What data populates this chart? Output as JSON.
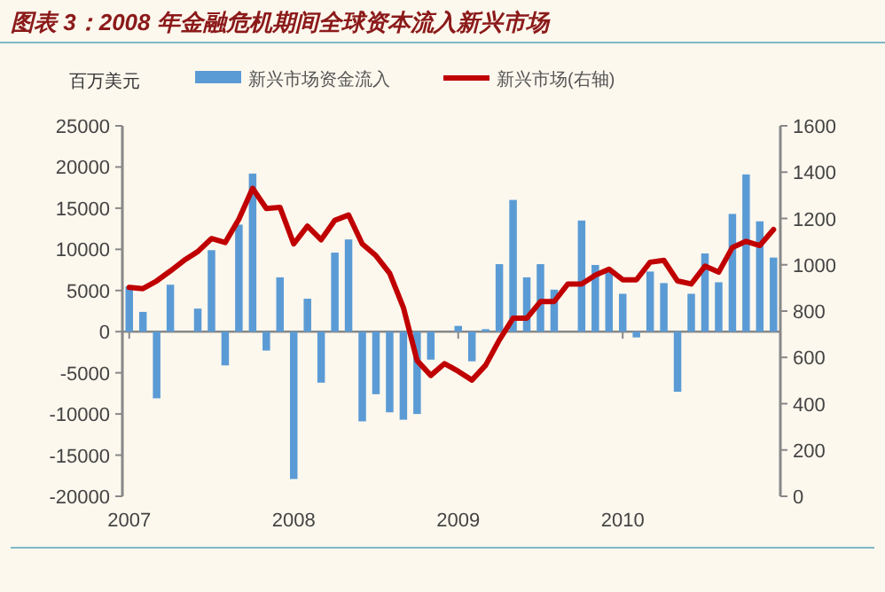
{
  "chart_data": {
    "type": "bar",
    "title": "图表 3：2008 年金融危机期间全球资本流入新兴市场",
    "ylabel": "百万美元",
    "categories": [
      "2007",
      null,
      null,
      null,
      null,
      null,
      null,
      null,
      null,
      null,
      null,
      null,
      "2008",
      null,
      null,
      null,
      null,
      null,
      null,
      null,
      null,
      null,
      null,
      null,
      "2009",
      null,
      null,
      null,
      null,
      null,
      null,
      null,
      null,
      null,
      null,
      null,
      "2010",
      null,
      null,
      null,
      null,
      null,
      null,
      null,
      null,
      null,
      null,
      null
    ],
    "series": [
      {
        "name": "新兴市场资金流入",
        "color": "#5b9bd5",
        "values": [
          5500,
          2400,
          -8100,
          5700,
          null,
          2800,
          9900,
          -4100,
          13000,
          19200,
          -2300,
          6600,
          -17900,
          4000,
          -6200,
          9600,
          11200,
          -10900,
          -7600,
          -9800,
          -10700,
          -10000,
          -3400,
          null,
          700,
          -3600,
          300,
          8200,
          16000,
          6600,
          8200,
          5100,
          null,
          13500,
          8100,
          7500,
          4600,
          -700,
          7300,
          5900,
          -7300,
          4600,
          9500,
          6000,
          14300,
          19100,
          13400,
          9000
        ]
      },
      {
        "name": "新兴市场(右轴)",
        "type": "line",
        "axis": "y2",
        "color": "#c00000",
        "values": [
          902,
          897,
          930,
          973,
          1019,
          1057,
          1113,
          1096,
          1197,
          1330,
          1243,
          1248,
          1090,
          1167,
          1108,
          1192,
          1215,
          1090,
          1039,
          963,
          815,
          586,
          522,
          573,
          540,
          502,
          566,
          675,
          769,
          769,
          841,
          841,
          917,
          917,
          955,
          981,
          935,
          935,
          1011,
          1019,
          930,
          917,
          994,
          968,
          1075,
          1101,
          1083,
          1152
        ]
      }
    ],
    "ylim": [
      -20000,
      25000
    ],
    "yticks": [
      -20000,
      -15000,
      -10000,
      -5000,
      0,
      5000,
      10000,
      15000,
      20000,
      25000
    ],
    "y2lim": [
      0,
      1600
    ],
    "y2ticks": [
      0,
      200,
      400,
      600,
      800,
      1000,
      1200,
      1400,
      1600
    ],
    "legend": "top"
  }
}
